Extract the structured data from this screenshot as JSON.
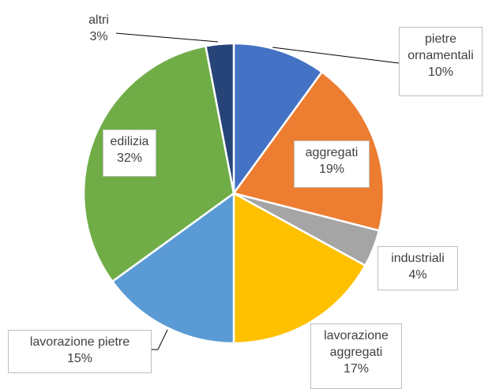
{
  "chart_data": {
    "type": "pie",
    "categories": [
      "pietre ornamentali",
      "aggregati",
      "industriali",
      "lavorazione aggregati",
      "lavorazione pietre",
      "edilizia",
      "altri"
    ],
    "values": [
      10,
      19,
      4,
      17,
      15,
      32,
      3
    ],
    "value_labels": [
      "10%",
      "19%",
      "4%",
      "17%",
      "15%",
      "32%",
      "3%"
    ],
    "colors": [
      "#4472c4",
      "#ed7d31",
      "#a5a5a5",
      "#ffc000",
      "#5b9bd5",
      "#70ad47",
      "#264478"
    ]
  }
}
